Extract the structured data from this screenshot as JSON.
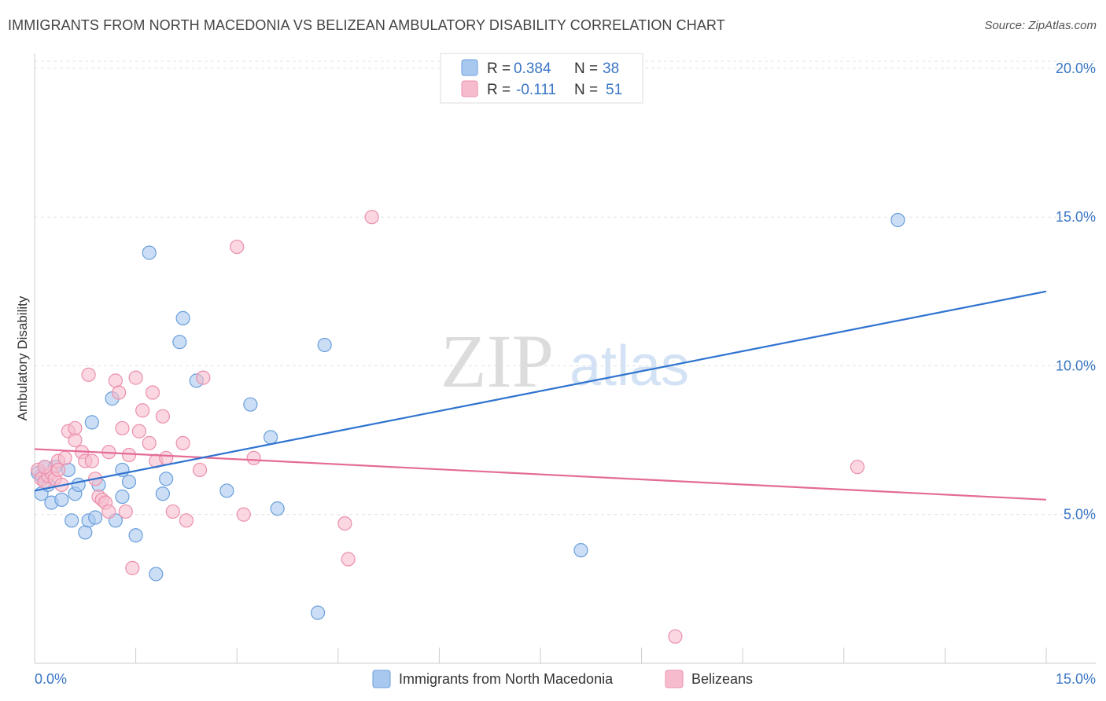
{
  "header": {
    "title": "IMMIGRANTS FROM NORTH MACEDONIA VS BELIZEAN AMBULATORY DISABILITY CORRELATION CHART",
    "source": "Source: ZipAtlas.com"
  },
  "watermark": {
    "zip": "ZIP",
    "atlas": "atlas"
  },
  "legend": {
    "r_label": "R =",
    "n_label": "N =",
    "series": [
      {
        "r": "0.384",
        "n": "38"
      },
      {
        "r": "-0.111",
        "n": "51"
      }
    ]
  },
  "colors": {
    "blue_fill": "#a9c8ef",
    "blue_stroke": "#6a9fdc",
    "blue_line": "#2f73d0",
    "pink_fill": "#f6bccd",
    "pink_stroke": "#ec8fab",
    "pink_line": "#e46b97",
    "tick_text": "#3a76c4"
  },
  "chart_data": {
    "type": "scatter",
    "title": "IMMIGRANTS FROM NORTH MACEDONIA VS BELIZEAN AMBULATORY DISABILITY CORRELATION CHART",
    "xlabel": "",
    "ylabel": "Ambulatory Disability",
    "xlim": [
      0,
      15
    ],
    "ylim": [
      0,
      20.5
    ],
    "x_tick_labels": [
      "0.0%",
      "15.0%"
    ],
    "y_ticks": [
      5,
      10,
      15,
      20
    ],
    "y_tick_labels": [
      "5.0%",
      "10.0%",
      "15.0%",
      "20.0%"
    ],
    "grid": true,
    "legend_position": "top-center",
    "series": [
      {
        "name": "Immigrants from North Macedonia",
        "color": "blue",
        "R": 0.384,
        "N": 38,
        "trend": {
          "x": [
            0,
            15
          ],
          "y": [
            5.8,
            12.5
          ]
        },
        "points": [
          [
            0.1,
            6.3
          ],
          [
            0.1,
            5.7
          ],
          [
            0.15,
            6.6
          ],
          [
            0.2,
            6.0
          ],
          [
            0.25,
            5.4
          ],
          [
            0.3,
            6.6
          ],
          [
            0.4,
            5.5
          ],
          [
            0.5,
            6.5
          ],
          [
            0.55,
            4.8
          ],
          [
            0.6,
            5.7
          ],
          [
            0.65,
            6.0
          ],
          [
            0.75,
            4.4
          ],
          [
            0.8,
            4.8
          ],
          [
            0.85,
            8.1
          ],
          [
            0.9,
            4.9
          ],
          [
            0.95,
            6.0
          ],
          [
            1.15,
            8.9
          ],
          [
            1.2,
            4.8
          ],
          [
            1.3,
            5.6
          ],
          [
            1.3,
            6.5
          ],
          [
            1.4,
            6.1
          ],
          [
            1.5,
            4.3
          ],
          [
            1.7,
            13.8
          ],
          [
            1.8,
            3.0
          ],
          [
            1.9,
            5.7
          ],
          [
            1.95,
            6.2
          ],
          [
            2.15,
            10.8
          ],
          [
            2.2,
            11.6
          ],
          [
            2.4,
            9.5
          ],
          [
            2.85,
            5.8
          ],
          [
            3.2,
            8.7
          ],
          [
            3.5,
            7.6
          ],
          [
            3.6,
            5.2
          ],
          [
            4.2,
            1.7
          ],
          [
            4.3,
            10.7
          ],
          [
            8.1,
            3.8
          ],
          [
            12.8,
            14.9
          ],
          [
            0.05,
            6.4
          ]
        ]
      },
      {
        "name": "Belizeans",
        "color": "pink",
        "R": -0.111,
        "N": 51,
        "trend": {
          "x": [
            0,
            15
          ],
          "y": [
            7.2,
            5.5
          ]
        },
        "points": [
          [
            0.05,
            6.5
          ],
          [
            0.1,
            6.2
          ],
          [
            0.15,
            6.1
          ],
          [
            0.2,
            6.3
          ],
          [
            0.25,
            6.4
          ],
          [
            0.3,
            6.2
          ],
          [
            0.35,
            6.8
          ],
          [
            0.4,
            6.0
          ],
          [
            0.45,
            6.9
          ],
          [
            0.5,
            7.8
          ],
          [
            0.6,
            7.5
          ],
          [
            0.6,
            7.9
          ],
          [
            0.7,
            7.1
          ],
          [
            0.75,
            6.8
          ],
          [
            0.8,
            9.7
          ],
          [
            0.85,
            6.8
          ],
          [
            0.9,
            6.2
          ],
          [
            0.95,
            5.6
          ],
          [
            1.0,
            5.5
          ],
          [
            1.05,
            5.4
          ],
          [
            1.1,
            5.1
          ],
          [
            1.1,
            7.1
          ],
          [
            1.2,
            9.5
          ],
          [
            1.25,
            9.1
          ],
          [
            1.3,
            7.9
          ],
          [
            1.35,
            5.1
          ],
          [
            1.4,
            7.0
          ],
          [
            1.45,
            3.2
          ],
          [
            1.5,
            9.6
          ],
          [
            1.55,
            7.8
          ],
          [
            1.6,
            8.5
          ],
          [
            1.7,
            7.4
          ],
          [
            1.75,
            9.1
          ],
          [
            1.8,
            6.8
          ],
          [
            1.9,
            8.3
          ],
          [
            1.95,
            6.9
          ],
          [
            2.05,
            5.1
          ],
          [
            2.2,
            7.4
          ],
          [
            2.25,
            4.8
          ],
          [
            2.45,
            6.5
          ],
          [
            2.5,
            9.6
          ],
          [
            3.0,
            14.0
          ],
          [
            3.1,
            5.0
          ],
          [
            3.25,
            6.9
          ],
          [
            4.6,
            4.7
          ],
          [
            4.65,
            3.5
          ],
          [
            5.0,
            15.0
          ],
          [
            9.5,
            0.9
          ],
          [
            12.2,
            6.6
          ],
          [
            0.15,
            6.6
          ],
          [
            0.35,
            6.5
          ]
        ]
      }
    ]
  },
  "bottom_legend": {
    "items": [
      "Immigrants from North Macedonia",
      "Belizeans"
    ]
  }
}
